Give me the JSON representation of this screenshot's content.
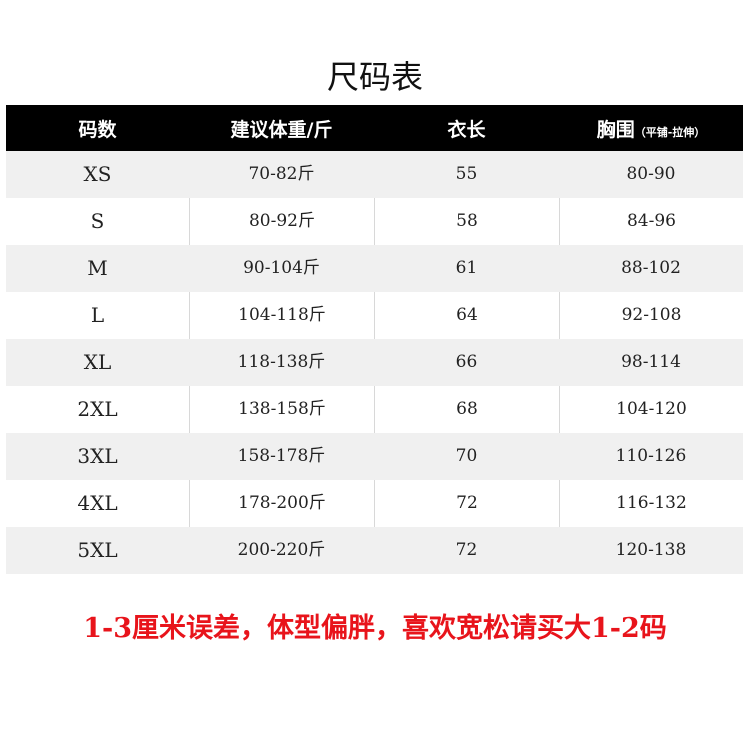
{
  "title": "尺码表",
  "header": {
    "size": "码数",
    "weight": "建议体重/斤",
    "length": "衣长",
    "chest": "胸围",
    "chest_note": "（平铺-拉伸）"
  },
  "rows": [
    {
      "size": "XS",
      "weight": "70-82斤",
      "length": "55",
      "chest": "80-90"
    },
    {
      "size": "S",
      "weight": "80-92斤",
      "length": "58",
      "chest": "84-96"
    },
    {
      "size": "M",
      "weight": "90-104斤",
      "length": "61",
      "chest": "88-102"
    },
    {
      "size": "L",
      "weight": "104-118斤",
      "length": "64",
      "chest": "92-108"
    },
    {
      "size": "XL",
      "weight": "118-138斤",
      "length": "66",
      "chest": "98-114"
    },
    {
      "size": "2XL",
      "weight": "138-158斤",
      "length": "68",
      "chest": "104-120"
    },
    {
      "size": "3XL",
      "weight": "158-178斤",
      "length": "70",
      "chest": "110-126"
    },
    {
      "size": "4XL",
      "weight": "178-200斤",
      "length": "72",
      "chest": "116-132"
    },
    {
      "size": "5XL",
      "weight": "200-220斤",
      "length": "72",
      "chest": "120-138"
    }
  ],
  "note": "1-3厘米误差，体型偏胖，喜欢宽松请买大1-2码",
  "colors": {
    "header_bg": "#000000",
    "stripe": "#f0f0f0",
    "note": "#e8141b"
  }
}
